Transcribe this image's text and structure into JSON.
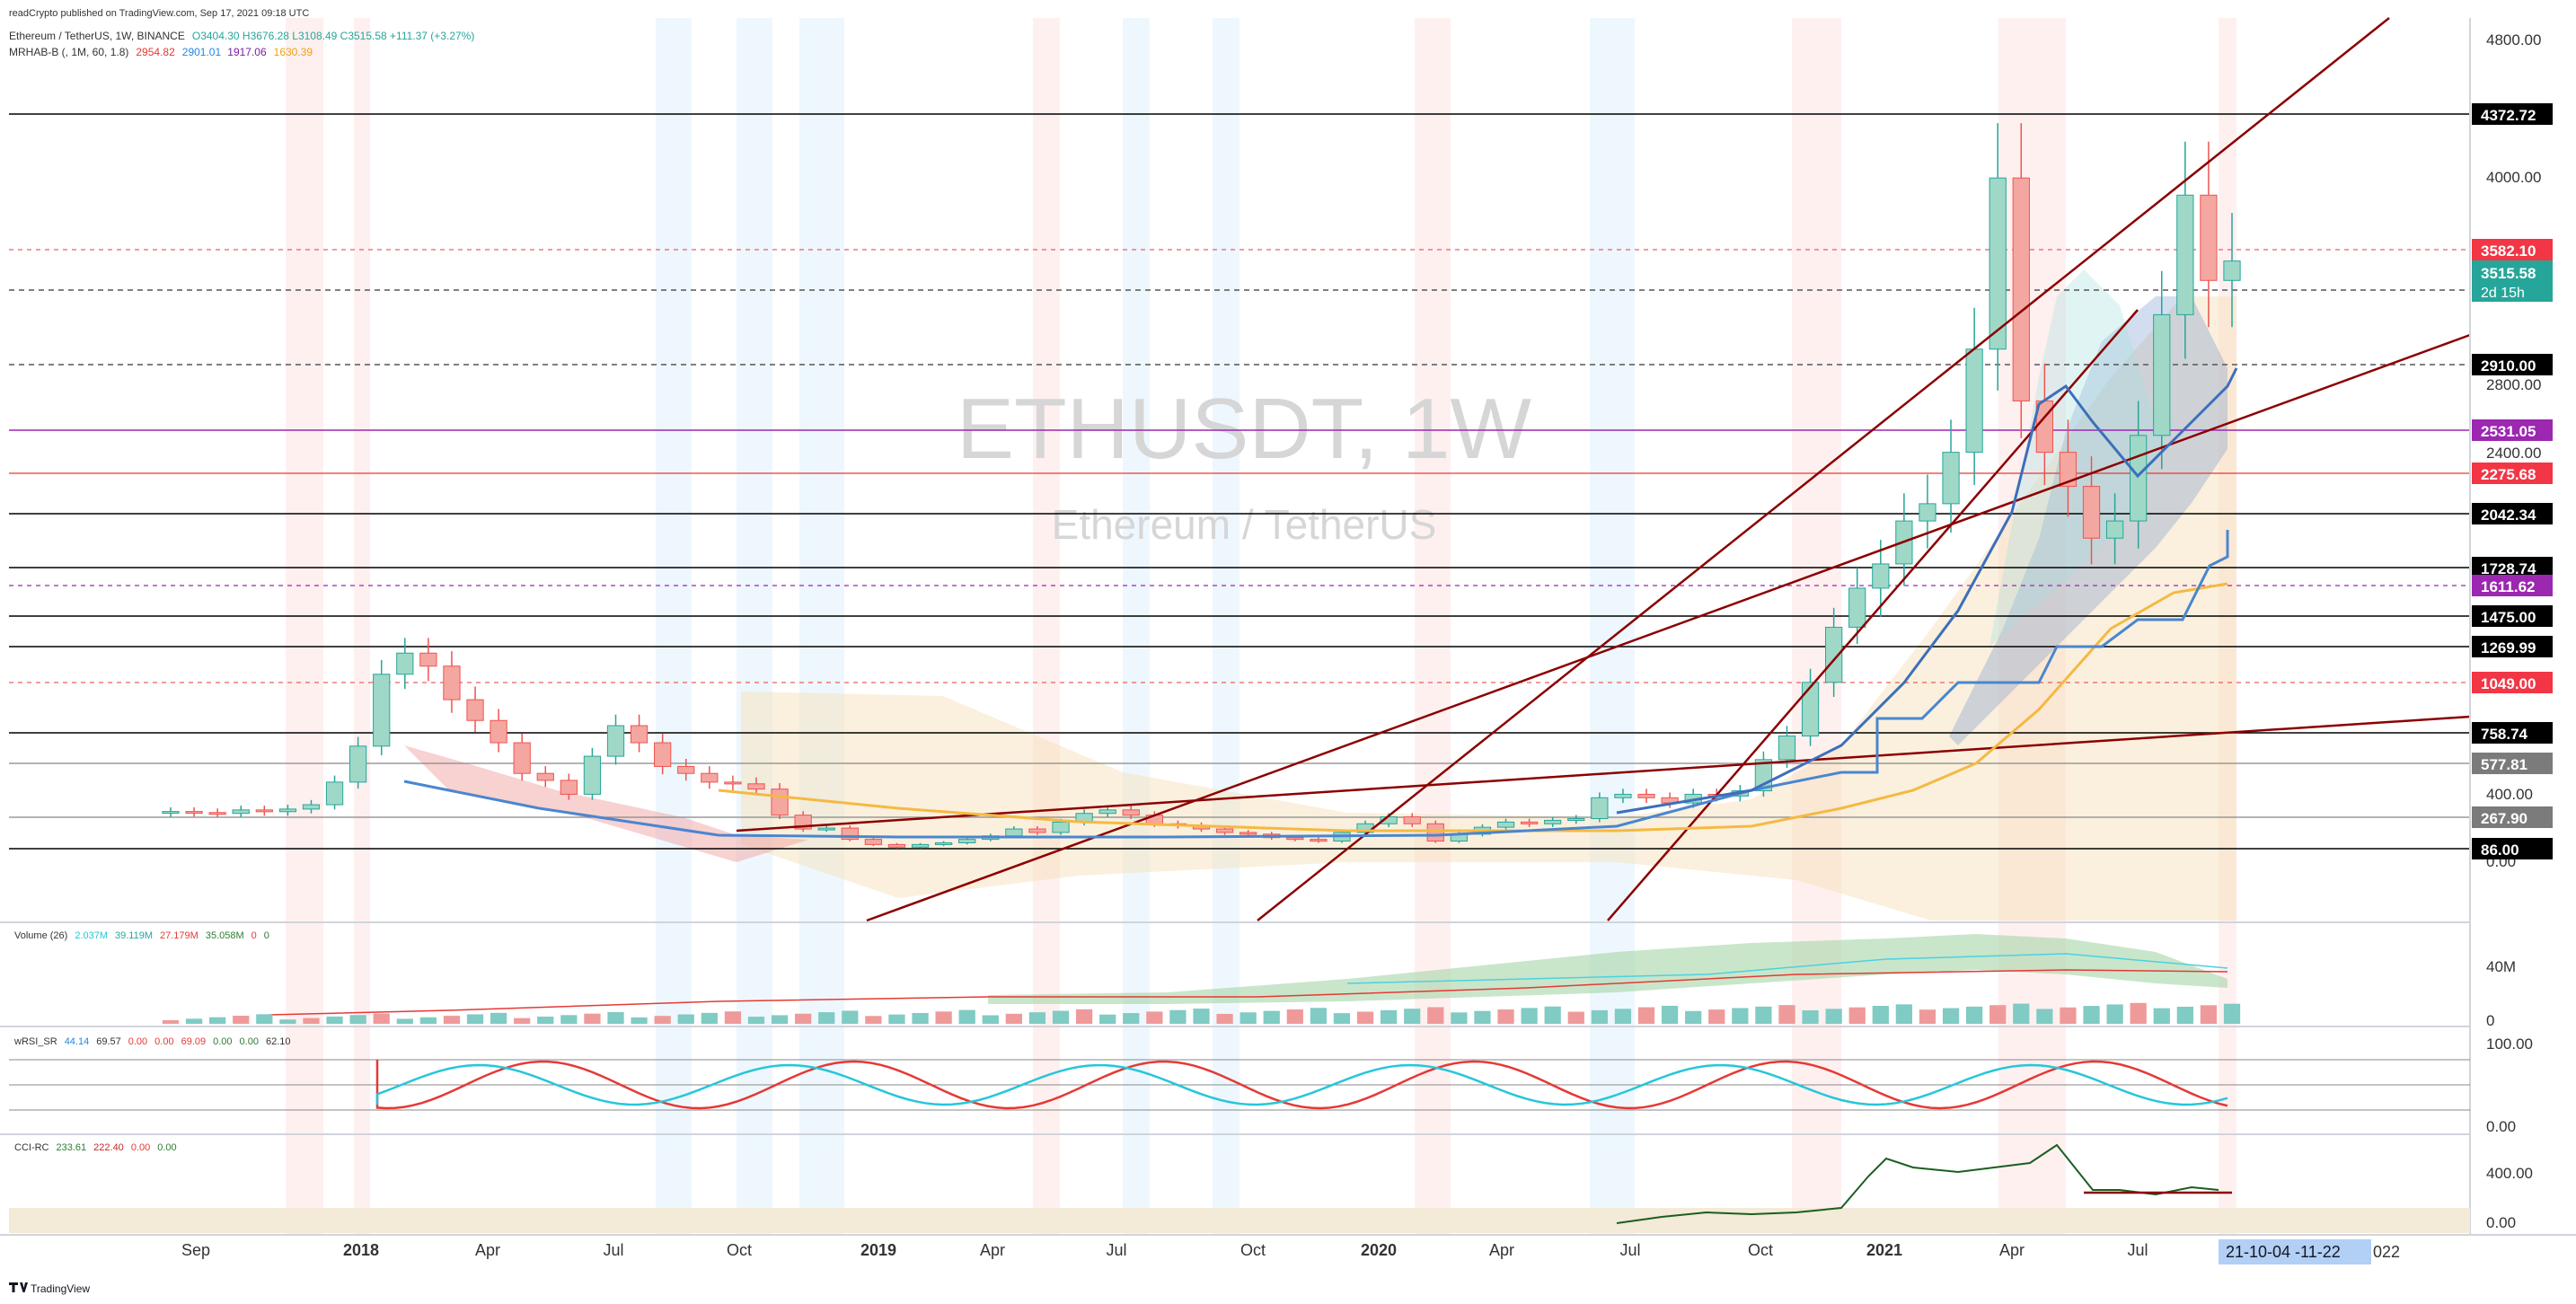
{
  "header": {
    "published": "readCrypto published on TradingView.com, Sep 17, 2021 09:18 UTC",
    "symbol_line": "Ethereum / TetherUS, 1W, BINANCE",
    "ohlc": "O3404.30  H3676.28  L3108.49  C3515.58  +111.37 (+3.27%)",
    "indicator_name": "MRHAB-B (, 1M, 60, 1.8)",
    "indicator_values": [
      "2954.82",
      "2901.01",
      "1917.06",
      "1630.39"
    ]
  },
  "watermark": {
    "ticker": "ETHUSDT, 1W",
    "description": "Ethereum / TetherUS"
  },
  "price_axis": {
    "ticks": [
      "4800.00",
      "4000.00",
      "2800.00",
      "2400.00",
      "400.00",
      "0.00"
    ],
    "labels": [
      {
        "text": "4372.72",
        "value": 4372.72,
        "bg": "#000000",
        "color": "#ffffff",
        "line": "solid"
      },
      {
        "text": "3582.10",
        "value": 3582.1,
        "bg": "#f23645",
        "color": "#ffffff",
        "line": "dashed-red"
      },
      {
        "text": "3343.06",
        "value": 3343.06,
        "bg": "#000000",
        "color": "#ffffff",
        "line": "dashed"
      },
      {
        "text": "2910.00",
        "value": 2910.0,
        "bg": "#000000",
        "color": "#ffffff",
        "line": "dashed"
      },
      {
        "text": "2531.05",
        "value": 2531.05,
        "bg": "#9c27b0",
        "color": "#ffffff",
        "line": "purple"
      },
      {
        "text": "2275.68",
        "value": 2275.68,
        "bg": "#f23645",
        "color": "#ffffff",
        "line": "red"
      },
      {
        "text": "2042.34",
        "value": 2042.34,
        "bg": "#000000",
        "color": "#ffffff",
        "line": "solid"
      },
      {
        "text": "1728.74",
        "value": 1728.74,
        "bg": "#000000",
        "color": "#ffffff",
        "line": "solid"
      },
      {
        "text": "1611.62",
        "value": 1611.62,
        "bg": "#9c27b0",
        "color": "#ffffff",
        "line": "dashed-purple"
      },
      {
        "text": "1475.00",
        "value": 1475.0,
        "bg": "#000000",
        "color": "#ffffff",
        "line": "solid"
      },
      {
        "text": "1269.99",
        "value": 1269.99,
        "bg": "#000000",
        "color": "#ffffff",
        "line": "solid"
      },
      {
        "text": "1049.00",
        "value": 1049.0,
        "bg": "#f23645",
        "color": "#ffffff",
        "line": "dashed-red"
      },
      {
        "text": "758.74",
        "value": 758.74,
        "bg": "#000000",
        "color": "#ffffff",
        "line": "solid"
      },
      {
        "text": "577.81",
        "value": 577.81,
        "bg": "#7b7b7b",
        "color": "#ffffff",
        "line": "solid"
      },
      {
        "text": "267.90",
        "value": 267.9,
        "bg": "#7b7b7b",
        "color": "#ffffff",
        "line": "solid"
      },
      {
        "text": "86.00",
        "value": 86.0,
        "bg": "#000000",
        "color": "#ffffff",
        "line": "solid"
      }
    ],
    "current_price": {
      "text": "3515.58",
      "countdown": "2d 15h",
      "bg": "#26a69a"
    }
  },
  "volume_pane": {
    "title": "Volume (26)",
    "values": [
      "2.037M",
      "39.119M",
      "27.179M",
      "35.058M",
      "0",
      "0"
    ],
    "axis": [
      "40M",
      "0"
    ]
  },
  "wrsi_pane": {
    "title": "wRSI_SR",
    "values": [
      "44.14",
      "69.57",
      "0.00",
      "0.00",
      "69.09",
      "0.00",
      "0.00",
      "62.10"
    ],
    "axis": [
      "100.00",
      "0.00"
    ]
  },
  "cci_pane": {
    "title": "CCI-RC",
    "values": [
      "233.61",
      "222.40",
      "0.00",
      "0.00"
    ],
    "axis": [
      "400.00",
      "0.00"
    ]
  },
  "time_axis": {
    "labels": [
      "Sep",
      "2018",
      "Apr",
      "Jul",
      "Oct",
      "2019",
      "Apr",
      "Jul",
      "Oct",
      "2020",
      "Apr",
      "Jul",
      "Oct",
      "2021",
      "Apr",
      "Jul"
    ],
    "highlight": "21-10-04  -11-22",
    "after": "022"
  },
  "footer": {
    "brand": "TradingView"
  },
  "colors": {
    "up": "#26a69a",
    "down": "#ef5350",
    "trend": "#8b0000",
    "ma_blue": "#4a86cf",
    "ma_orange": "#f5b942",
    "purple": "#9c27b0"
  },
  "chart_data": {
    "type": "candlestick",
    "title": "ETHUSDT, 1W",
    "ylim": [
      0,
      4800
    ],
    "x_range": [
      "2017-08",
      "2022-01"
    ],
    "key_levels": [
      4372.72,
      3582.1,
      3343.06,
      2910.0,
      2531.05,
      2275.68,
      2042.34,
      1728.74,
      1611.62,
      1475.0,
      1269.99,
      1049.0,
      758.74,
      577.81,
      267.9,
      86.0
    ],
    "last": {
      "open": 3404.3,
      "high": 3676.28,
      "low": 3108.49,
      "close": 3515.58,
      "change": 111.37,
      "change_pct": 3.27
    },
    "series": [
      {
        "name": "Ethereum / TetherUS",
        "type": "candlestick",
        "approx_weekly_close": [
          301,
          295,
          290,
          310,
          300,
          315,
          340,
          470,
          680,
          1100,
          1230,
          1150,
          950,
          830,
          700,
          520,
          480,
          400,
          620,
          800,
          700,
          560,
          520,
          470,
          460,
          430,
          280,
          200,
          205,
          140,
          110,
          95,
          110,
          120,
          140,
          160,
          200,
          180,
          240,
          290,
          310,
          280,
          230,
          220,
          200,
          180,
          170,
          150,
          140,
          130,
          180,
          230,
          270,
          230,
          130,
          170,
          210,
          240,
          230,
          250,
          260,
          380,
          400,
          380,
          350,
          400,
          390,
          420,
          600,
          740,
          1050,
          1400,
          1600,
          1750,
          2000,
          2100,
          2400,
          3000,
          4000,
          2700,
          2400,
          2200,
          1900,
          2000,
          2500,
          3200,
          3900,
          3400,
          3515
        ]
      }
    ]
  }
}
